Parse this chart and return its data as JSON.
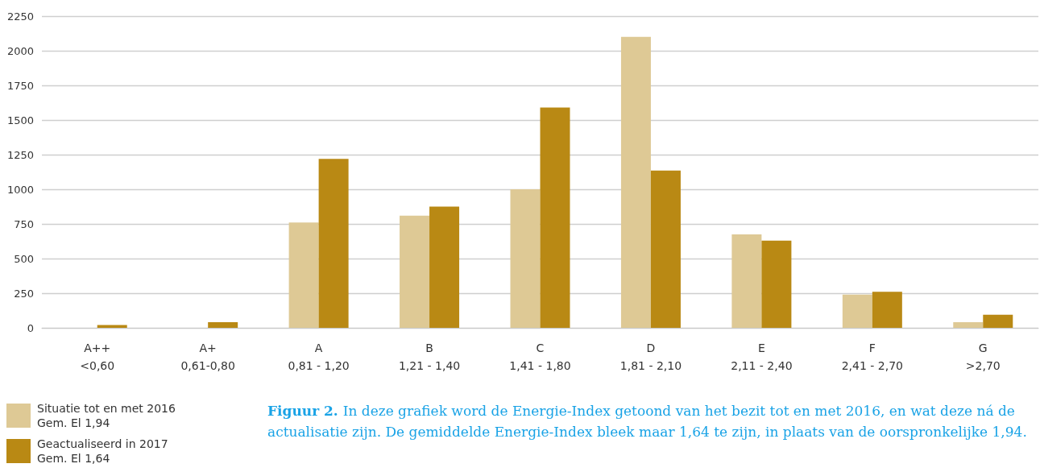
{
  "chart_data": {
    "type": "bar",
    "categories": [
      "A++\n<0,60",
      "A+\n0,61-0,80",
      "A\n0,81 - 1,20",
      "B\n1,21 - 1,40",
      "C\n1,41 - 1,80",
      "D\n1,81 - 2,10",
      "E\n2,11 - 2,40",
      "F\n2,41 - 2,70",
      "G\n>2,70"
    ],
    "series": [
      {
        "name": "Situatie tot en met 2016\nGem. El 1,94",
        "color": "#dec995",
        "values": [
          0,
          0,
          760,
          810,
          1000,
          2100,
          675,
          240,
          40
        ]
      },
      {
        "name": "Geactualiseerd in 2017\nGem. El 1,64",
        "color": "#b98914",
        "values": [
          20,
          40,
          1220,
          875,
          1590,
          1135,
          630,
          260,
          95
        ]
      }
    ],
    "ylim": [
      0,
      2250
    ],
    "yticks": [
      0,
      250,
      500,
      750,
      1000,
      1250,
      1500,
      1750,
      2000,
      2250
    ],
    "grid": "y",
    "legend": "bottom left",
    "annotations": [
      "Figuur 2.",
      "In deze grafiek word de Energie-Index getoond van het bezit tot en met 2016, en wat deze ná de actualisatie zijn. De gemiddelde Energie-Index bleek maar 1,64 te zijn, in plaats van de oorspronkelijke 1,94."
    ]
  }
}
